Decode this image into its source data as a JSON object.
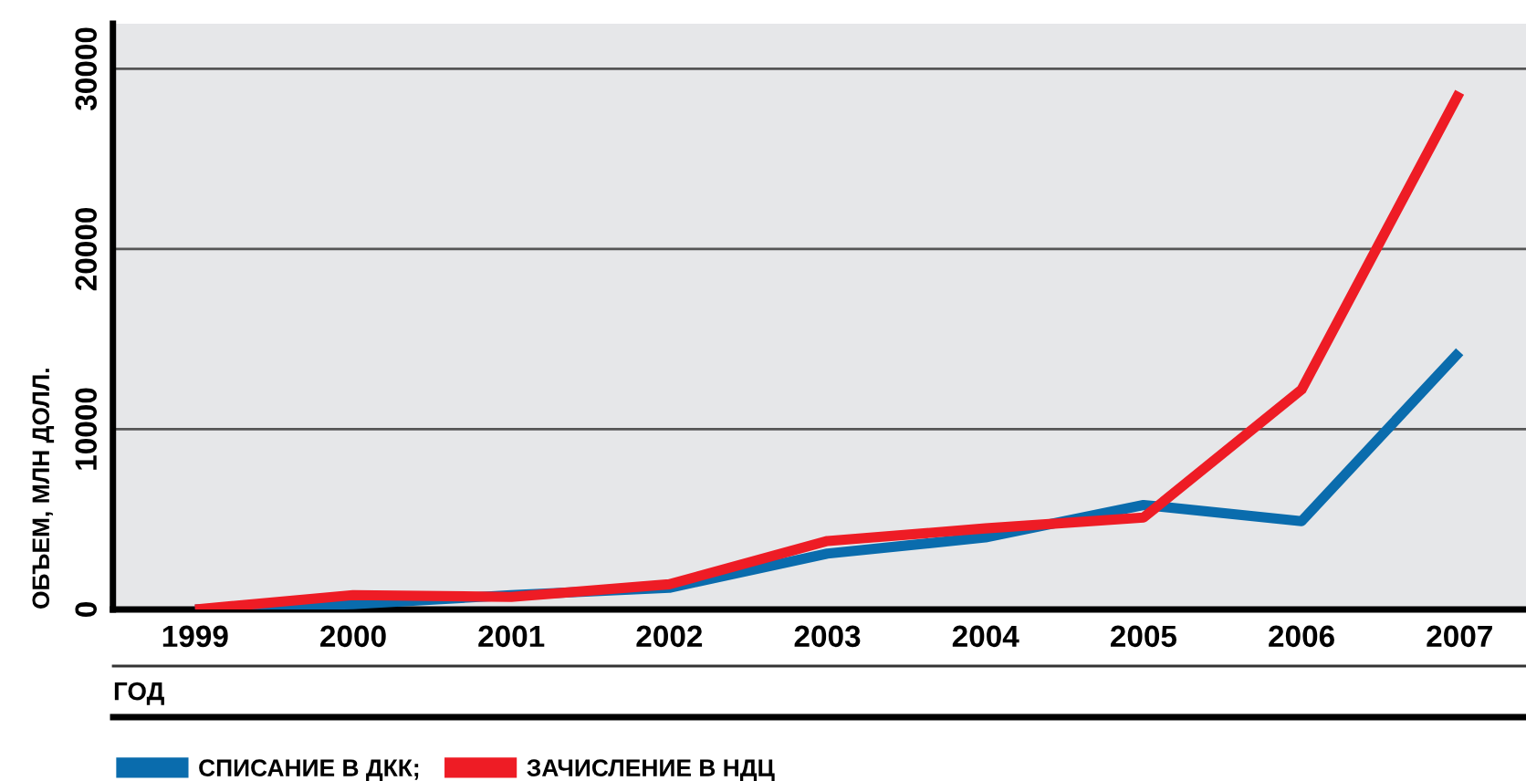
{
  "chart_data": {
    "type": "line",
    "xlabel": "ГОД",
    "ylabel": "ОБЪЕМ, МЛН ДОЛЛ.",
    "categories": [
      "1999",
      "2000",
      "2001",
      "2002",
      "2003",
      "2004",
      "2005",
      "2006",
      "2007"
    ],
    "series": [
      {
        "name": "СПИСАНИЕ В ДКК;",
        "color": "#0a6cad",
        "values": [
          0,
          300,
          800,
          1200,
          3100,
          4000,
          5800,
          4900,
          14300
        ]
      },
      {
        "name": "ЗАЧИСЛЕНИЕ В НДЦ",
        "color": "#ee1c25",
        "values": [
          0,
          800,
          700,
          1400,
          3800,
          4500,
          5100,
          12200,
          28700
        ]
      }
    ],
    "ylim": [
      0,
      32500
    ],
    "yticks": [
      0,
      10000,
      20000,
      30000
    ],
    "grid": "y",
    "legend": "bottom",
    "marker": "none",
    "line_style": "solid"
  }
}
